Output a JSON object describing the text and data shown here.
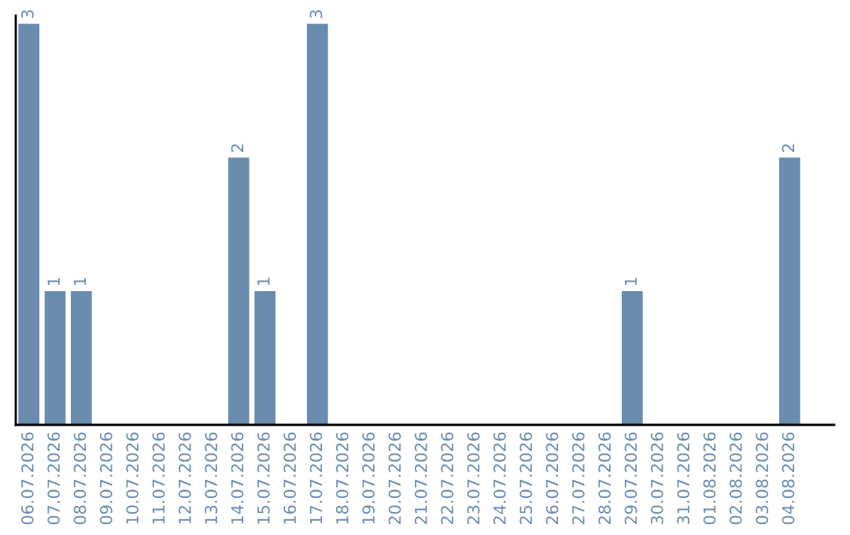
{
  "chart_data": {
    "type": "bar",
    "categories": [
      "06.07.2026",
      "07.07.2026",
      "08.07.2026",
      "09.07.2026",
      "10.07.2026",
      "11.07.2026",
      "12.07.2026",
      "13.07.2026",
      "14.07.2026",
      "15.07.2026",
      "16.07.2026",
      "17.07.2026",
      "18.07.2026",
      "19.07.2026",
      "20.07.2026",
      "21.07.2026",
      "22.07.2026",
      "23.07.2026",
      "24.07.2026",
      "25.07.2026",
      "26.07.2026",
      "27.07.2026",
      "28.07.2026",
      "29.07.2026",
      "30.07.2026",
      "31.07.2026",
      "01.08.2026",
      "02.08.2026",
      "03.08.2026",
      "04.08.2026"
    ],
    "values": [
      3,
      1,
      1,
      0,
      0,
      0,
      0,
      0,
      2,
      1,
      0,
      3,
      0,
      0,
      0,
      0,
      0,
      0,
      0,
      0,
      0,
      0,
      0,
      1,
      0,
      0,
      0,
      0,
      0,
      2
    ],
    "value_labels": [
      "3",
      "1",
      "1",
      null,
      null,
      null,
      null,
      null,
      "2",
      "1",
      null,
      "3",
      null,
      null,
      null,
      null,
      null,
      null,
      null,
      null,
      null,
      null,
      null,
      "1",
      null,
      null,
      null,
      null,
      null,
      "2"
    ],
    "color": "#6a8caf",
    "grid": false,
    "legend": false
  }
}
